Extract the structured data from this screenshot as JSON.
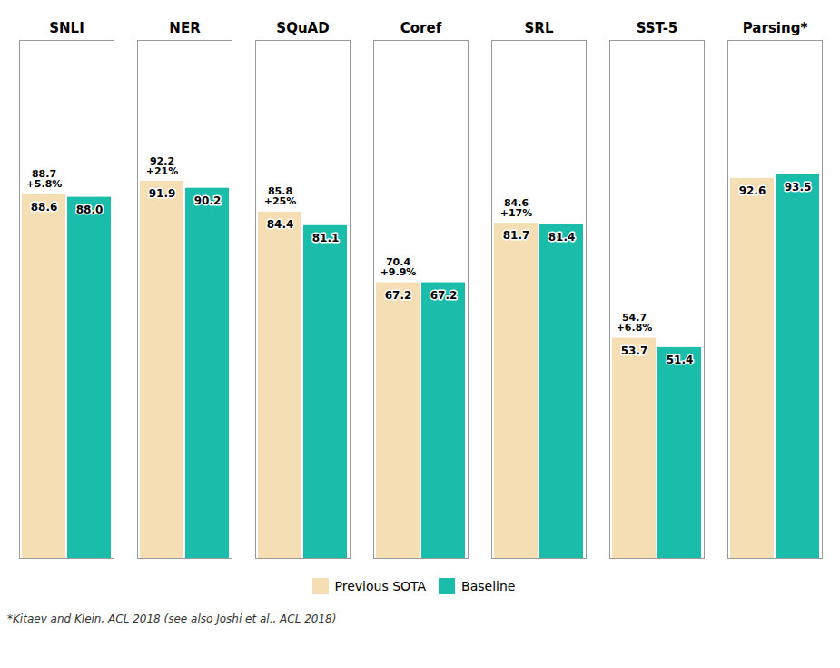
{
  "chart_data": {
    "type": "bar",
    "categories": [
      "SNLI",
      "NER",
      "SQuAD",
      "Coref",
      "SRL",
      "SST-5",
      "Parsing*"
    ],
    "series": [
      {
        "name": "Previous SOTA",
        "color": "#F5DEB3",
        "values": [
          88.6,
          91.9,
          84.4,
          67.2,
          81.7,
          53.7,
          92.6
        ]
      },
      {
        "name": "Baseline",
        "color": "#1ABCAA",
        "values": [
          88.0,
          90.2,
          81.1,
          67.2,
          81.4,
          51.4,
          93.5
        ],
        "value_labels": [
          "88.0",
          "90.2",
          "81.1",
          "67.2",
          "81.4",
          "51.4",
          "93.5"
        ]
      }
    ],
    "annotations": [
      {
        "x": "SNLI",
        "series": "Previous SOTA",
        "text": "88.7\n+5.8%"
      },
      {
        "x": "NER",
        "series": "Previous SOTA",
        "text": "92.2\n+21%"
      },
      {
        "x": "SQuAD",
        "series": "Previous SOTA",
        "text": "85.8\n+25%"
      },
      {
        "x": "Coref",
        "series": "Previous SOTA",
        "text": "70.4\n+9.9%"
      },
      {
        "x": "SRL",
        "series": "Previous SOTA",
        "text": "84.6\n+17%"
      },
      {
        "x": "SST-5",
        "series": "Previous SOTA",
        "text": "54.7\n+6.8%"
      }
    ],
    "caption": "*Kitaev and Klein, ACL 2018   (see also Joshi et al., ACL 2018)",
    "ylim": [
      0,
      126.225
    ],
    "yticks": [],
    "tick_labels": "x",
    "grid": false,
    "legend": "bottom",
    "data_labels": true
  }
}
